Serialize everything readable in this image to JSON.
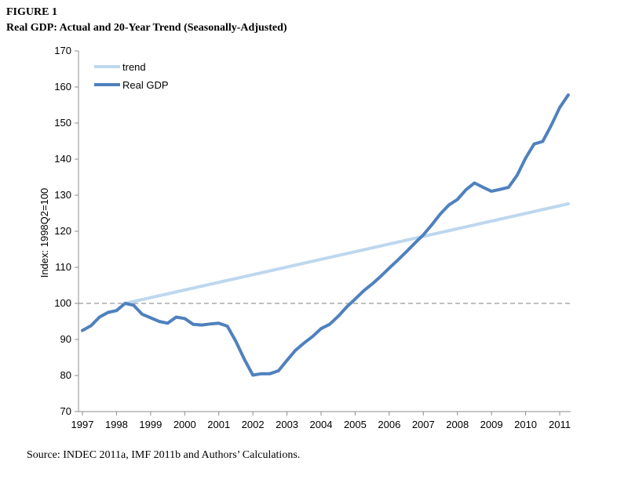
{
  "figure": {
    "label": "FIGURE 1",
    "title": "Real GDP: Actual and 20-Year Trend (Seasonally-Adjusted)",
    "source": "Source: INDEC 2011a, IMF 2011b and Authors’ Calculations."
  },
  "chart_data": {
    "type": "line",
    "ylabel": "Index: 1998Q2=100",
    "xlabel": "",
    "xlim": [
      1997,
      2011.4
    ],
    "ylim": [
      70,
      170
    ],
    "yticks": [
      70,
      80,
      90,
      100,
      110,
      120,
      130,
      140,
      150,
      160,
      170
    ],
    "xticks": [
      "1997",
      "1998",
      "1999",
      "2000",
      "2001",
      "2002",
      "2003",
      "2004",
      "2005",
      "2006",
      "2007",
      "2008",
      "2009",
      "2010",
      "2011"
    ],
    "reference_line": {
      "y": 100,
      "style": "dashed",
      "color": "#999999"
    },
    "legend_position": "top-left",
    "series": [
      {
        "name": "trend",
        "color": "#bdd7ee",
        "x": [
          1998.25,
          2011.25
        ],
        "y": [
          100,
          127.6
        ]
      },
      {
        "name": "Real GDP",
        "color": "#4f81bd",
        "x": [
          1997.0,
          1997.25,
          1997.5,
          1997.75,
          1998.0,
          1998.25,
          1998.5,
          1998.75,
          1999.0,
          1999.25,
          1999.5,
          1999.75,
          2000.0,
          2000.25,
          2000.5,
          2000.75,
          2001.0,
          2001.25,
          2001.5,
          2001.75,
          2002.0,
          2002.25,
          2002.5,
          2002.75,
          2003.0,
          2003.25,
          2003.5,
          2003.75,
          2004.0,
          2004.25,
          2004.5,
          2004.75,
          2005.0,
          2005.25,
          2005.5,
          2005.75,
          2006.0,
          2006.25,
          2006.5,
          2006.75,
          2007.0,
          2007.25,
          2007.5,
          2007.75,
          2008.0,
          2008.25,
          2008.5,
          2008.75,
          2009.0,
          2009.25,
          2009.5,
          2009.75,
          2010.0,
          2010.25,
          2010.5,
          2010.75,
          2011.0,
          2011.25
        ],
        "y": [
          92.5,
          93.8,
          96.2,
          97.5,
          98.0,
          100.0,
          99.5,
          97.0,
          96.0,
          95.0,
          94.5,
          96.2,
          95.8,
          94.2,
          94.0,
          94.3,
          94.5,
          93.7,
          89.5,
          84.5,
          80.1,
          80.5,
          80.5,
          81.3,
          84.2,
          87.0,
          89.0,
          90.8,
          93.0,
          94.2,
          96.4,
          99.0,
          101.2,
          103.5,
          105.4,
          107.5,
          109.8,
          112.0,
          114.3,
          116.7,
          119.0,
          121.8,
          124.8,
          127.3,
          128.8,
          131.5,
          133.4,
          132.2,
          131.1,
          131.6,
          132.2,
          135.5,
          140.3,
          144.2,
          144.9,
          149.3,
          154.3,
          157.8
        ]
      }
    ]
  }
}
